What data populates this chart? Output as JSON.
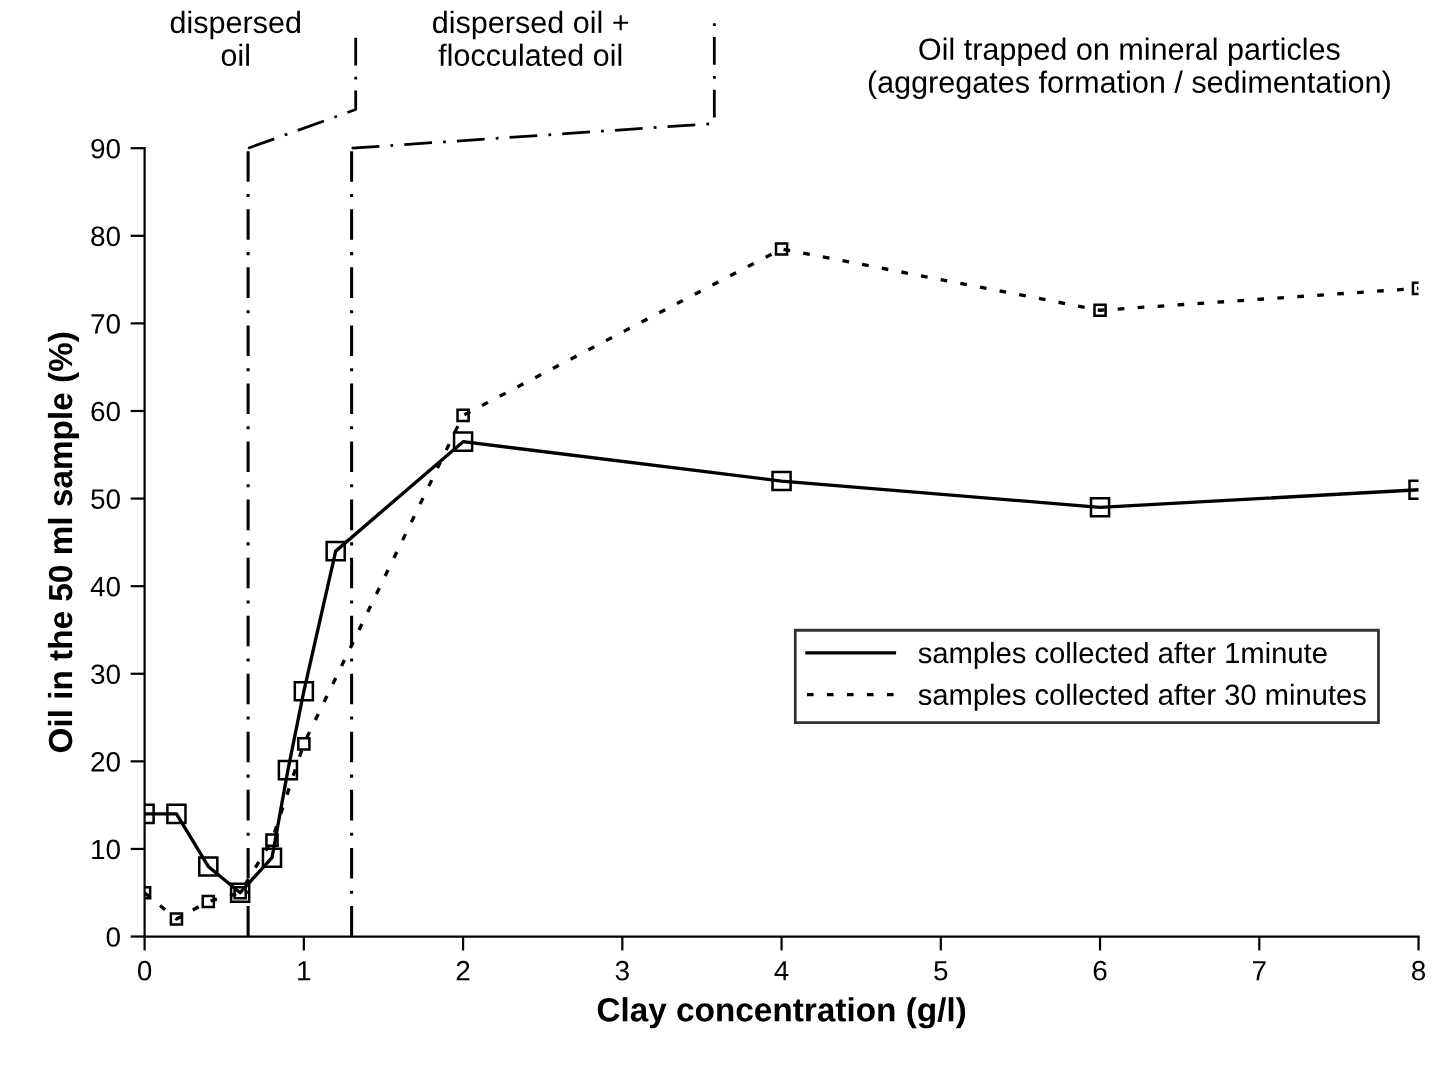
{
  "chart_data": {
    "type": "line",
    "xlabel": "Clay concentration (g/l)",
    "ylabel": "Oil in the 50 ml sample (%)",
    "series": [
      {
        "name": "samples collected after 1minute",
        "color": "#000000",
        "line_style": "solid",
        "x": [
          0,
          0.2,
          0.4,
          0.6,
          0.8,
          0.9,
          1.0,
          1.2,
          2,
          4,
          6,
          8
        ],
        "values": [
          14,
          14,
          8,
          5,
          9,
          19,
          28,
          44,
          56.5,
          52,
          49,
          51
        ]
      },
      {
        "name": "samples collected after 30 minutes",
        "color": "#000000",
        "line_style": "dotted",
        "x": [
          0,
          0.2,
          0.4,
          0.6,
          0.8,
          1.0,
          2,
          4,
          6,
          8
        ],
        "values": [
          5,
          2,
          4,
          5,
          11,
          22,
          59.5,
          78.5,
          71.5,
          74
        ]
      }
    ],
    "marker": "square",
    "xlim": [
      0,
      8
    ],
    "xticks": [
      0,
      1,
      2,
      3,
      4,
      5,
      6,
      7,
      8
    ],
    "ylim": [
      0,
      90
    ],
    "yticks": [
      0,
      10,
      20,
      30,
      40,
      50,
      60,
      70,
      80,
      90
    ],
    "grid": false,
    "legend": "right",
    "ref_lines": [
      {
        "axis": "x",
        "value": 0.65,
        "color": "#000000",
        "line_style": "dashdot"
      },
      {
        "axis": "x",
        "value": 1.3,
        "color": "#000000",
        "line_style": "dashdot"
      }
    ],
    "annotations": [
      "dispersed\noil",
      "dispersed oil +\nflocculated oil",
      "Oil trapped on mineral particles\n(aggregates formation / sedimentation)"
    ]
  }
}
